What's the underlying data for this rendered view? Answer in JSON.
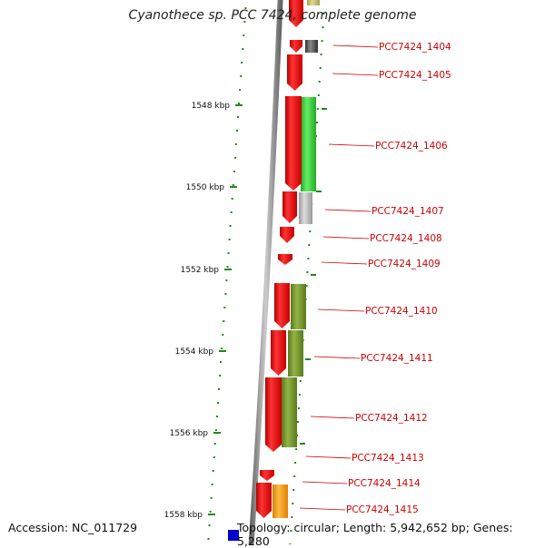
{
  "title": "Cyanothece sp. PCC 7424, complete genome",
  "footer": {
    "accession": "Accession: NC_011729",
    "summary": "Topology: circular; Length: 5,942,652 bp; Genes: 5,280"
  },
  "scale": {
    "ticks": [
      {
        "label": "1548 kbp"
      },
      {
        "label": "1550 kbp"
      },
      {
        "label": "1552 kbp"
      },
      {
        "label": "1554 kbp"
      },
      {
        "label": "1556 kbp"
      },
      {
        "label": "1558 kbp"
      }
    ]
  },
  "genes": [
    {
      "label": "PCC7424_1404",
      "color": "#dd0000"
    },
    {
      "label": "PCC7424_1405",
      "color": "#dd0000"
    },
    {
      "label": "PCC7424_1406",
      "color": "#dd0000"
    },
    {
      "label": "PCC7424_1407",
      "color": "#dd0000"
    },
    {
      "label": "PCC7424_1408",
      "color": "#dd0000"
    },
    {
      "label": "PCC7424_1409",
      "color": "#dd0000"
    },
    {
      "label": "PCC7424_1410",
      "color": "#dd0000"
    },
    {
      "label": "PCC7424_1411",
      "color": "#dd0000"
    },
    {
      "label": "PCC7424_1412",
      "color": "#dd0000"
    },
    {
      "label": "PCC7424_1413",
      "color": "#dd0000"
    },
    {
      "label": "PCC7424_1414",
      "color": "#dd0000"
    },
    {
      "label": "PCC7424_1415",
      "color": "#dd0000"
    }
  ],
  "colors": {
    "label_text": "#cc0000",
    "tick": "#1a8a1a",
    "backbone": "#888888",
    "cds": "#ee0000",
    "cog_green": "#33cc33",
    "cog_gray": "#aaaaaa",
    "cog_olive": "#6b8e23",
    "cog_orange": "#ff9900",
    "cog_khaki": "#c8c070",
    "cog_dark": "#555555",
    "cog_blue": "#0000cc"
  }
}
